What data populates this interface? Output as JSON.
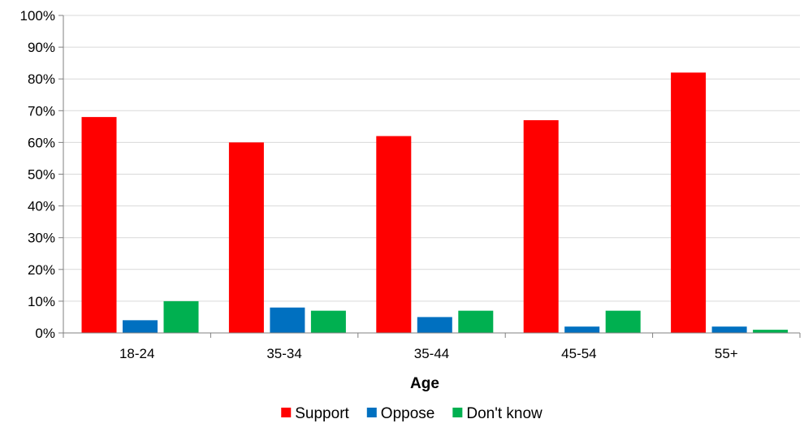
{
  "chart_data": {
    "type": "bar",
    "title": "",
    "xlabel": "Age",
    "ylabel": "",
    "categories": [
      "18-24",
      "35-34",
      "35-44",
      "45-54",
      "55+"
    ],
    "series": [
      {
        "name": "Support",
        "color": "#ff0000",
        "values": [
          68,
          60,
          62,
          67,
          82
        ]
      },
      {
        "name": "Oppose",
        "color": "#0070c0",
        "values": [
          4,
          8,
          5,
          2,
          2
        ]
      },
      {
        "name": "Don't know",
        "color": "#00b050",
        "values": [
          10,
          7,
          7,
          7,
          1
        ]
      }
    ],
    "ylim": [
      0,
      100
    ],
    "y_ticks": [
      "0%",
      "10%",
      "20%",
      "30%",
      "40%",
      "50%",
      "60%",
      "70%",
      "80%",
      "90%",
      "100%"
    ],
    "y_tick_values": [
      0,
      10,
      20,
      30,
      40,
      50,
      60,
      70,
      80,
      90,
      100
    ],
    "grid": true,
    "legend_position": "bottom"
  }
}
